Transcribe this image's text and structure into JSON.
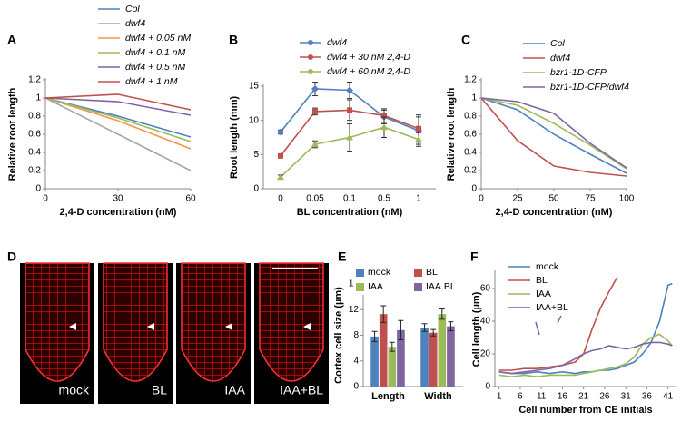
{
  "chart_data": [
    {
      "type": "line",
      "panel_label": "A",
      "ylabel": "Relative root length",
      "xlabel": "2,4-D concentration (nM)",
      "x": [
        0,
        30,
        60
      ],
      "xlim": [
        0,
        60
      ],
      "xticks": [
        0,
        30,
        60
      ],
      "ylim": [
        0,
        1.2
      ],
      "yticks": [
        0,
        0.2,
        0.4,
        0.6,
        0.8,
        1,
        1.2
      ],
      "series": [
        {
          "name": "Col",
          "color": "#4f81bd",
          "values": [
            1,
            0.8,
            0.57
          ]
        },
        {
          "name": "dwf4",
          "color": "#a6a6a6",
          "values": [
            1,
            0.6,
            0.2
          ]
        },
        {
          "name": "dwf4 + 0.05 nM",
          "color": "#f79646",
          "values": [
            1,
            0.75,
            0.44
          ]
        },
        {
          "name": "dwf4 + 0.1 nM",
          "color": "#9bbb59",
          "values": [
            1,
            0.78,
            0.52
          ]
        },
        {
          "name": "dwf4 + 0.5 nM",
          "color": "#8064a2",
          "values": [
            1,
            0.96,
            0.81
          ]
        },
        {
          "name": "dwf4 + 1 nM",
          "color": "#c0504d",
          "values": [
            1,
            1.04,
            0.87
          ]
        }
      ]
    },
    {
      "type": "line",
      "panel_label": "B",
      "ylabel": "Root length (mm)",
      "xlabel": "BL concentration (nM)",
      "categories": [
        "0",
        "0.05",
        "0.1",
        "0.5",
        "1"
      ],
      "ylim": [
        0,
        15
      ],
      "yticks": [
        0,
        5,
        10,
        15
      ],
      "series": [
        {
          "name": "dwf4",
          "color": "#4f81bd",
          "marker": "diamond",
          "values": [
            8.3,
            14.6,
            14.4,
            10.5,
            8.5
          ],
          "errors": [
            0.3,
            1,
            1.2,
            1,
            2
          ]
        },
        {
          "name": "dwf4 + 30 nM 2,4-D",
          "color": "#c0504d",
          "marker": "square",
          "values": [
            4.8,
            11.3,
            11.5,
            10.7,
            8.8
          ],
          "errors": [
            0.3,
            0.5,
            1.5,
            1,
            2
          ]
        },
        {
          "name": "dwf4 + 60 nM 2,4-D",
          "color": "#9bbb59",
          "marker": "triangle",
          "values": [
            1.7,
            6.5,
            7.5,
            9,
            7.2
          ],
          "errors": [
            0.3,
            0.5,
            2,
            1.5,
            1
          ]
        }
      ]
    },
    {
      "type": "line",
      "panel_label": "C",
      "ylabel": "Relative root length",
      "xlabel": "2,4-D concentration (nM)",
      "x": [
        0,
        25,
        50,
        75,
        100
      ],
      "xlim": [
        0,
        100
      ],
      "xticks": [
        0,
        25,
        50,
        75,
        100
      ],
      "ylim": [
        0,
        1.2
      ],
      "yticks": [
        0,
        0.2,
        0.4,
        0.6,
        0.8,
        1,
        1.2
      ],
      "series": [
        {
          "name": "Col",
          "color": "#4f81bd",
          "values": [
            1,
            0.87,
            0.6,
            0.38,
            0.17
          ]
        },
        {
          "name": "dwf4",
          "color": "#c0504d",
          "values": [
            1,
            0.53,
            0.25,
            0.18,
            0.14
          ]
        },
        {
          "name": "bzr1-1D-CFP",
          "color": "#9bbb59",
          "values": [
            1,
            0.92,
            0.72,
            0.48,
            0.22
          ]
        },
        {
          "name": "bzr1-1D-CFP/dwf4",
          "color": "#8064a2",
          "values": [
            1,
            0.96,
            0.83,
            0.5,
            0.23
          ]
        }
      ]
    },
    {
      "type": "bar",
      "panel_label": "E",
      "ylabel": "Cortex cell size (µm)",
      "categories": [
        "Length",
        "Width"
      ],
      "ylim": [
        0,
        16
      ],
      "yticks": [
        0,
        4,
        8,
        12,
        16
      ],
      "series": [
        {
          "name": "mock",
          "color": "#4f81bd",
          "values": [
            7.8,
            9.2
          ],
          "errors": [
            0.8,
            0.6
          ]
        },
        {
          "name": "BL",
          "color": "#c0504d",
          "values": [
            11.3,
            8.4
          ],
          "errors": [
            1.3,
            0.5
          ]
        },
        {
          "name": "IAA",
          "color": "#9bbb59",
          "values": [
            6.2,
            11.3
          ],
          "errors": [
            0.7,
            0.8
          ]
        },
        {
          "name": "IAA.BL",
          "color": "#8064a2",
          "values": [
            8.8,
            9.4
          ],
          "errors": [
            1.5,
            0.7
          ]
        }
      ]
    },
    {
      "type": "line",
      "panel_label": "F",
      "ylabel": "Cell length (µm)",
      "xlabel": "Cell number from CE initials",
      "x": [
        1,
        4,
        7,
        10,
        13,
        16,
        19,
        21,
        23,
        25,
        27,
        29,
        31,
        33,
        35,
        37,
        39,
        41,
        42
      ],
      "xlim": [
        0,
        43
      ],
      "xticks": [
        1,
        6,
        11,
        16,
        21,
        26,
        31,
        36,
        41
      ],
      "ylim": [
        0,
        70
      ],
      "yticks": [
        0,
        20,
        40,
        60
      ],
      "series": [
        {
          "name": "mock",
          "color": "#4f81bd",
          "values": [
            9,
            8,
            8,
            9,
            8,
            9,
            8,
            9,
            9,
            10,
            10,
            11,
            13,
            15,
            20,
            27,
            40,
            62,
            63
          ]
        },
        {
          "name": "BL",
          "color": "#c0504d",
          "values": [
            10,
            10,
            11,
            11,
            12,
            13,
            15,
            20,
            35,
            48,
            58,
            67,
            null,
            null,
            null,
            null,
            null,
            null,
            null
          ]
        },
        {
          "name": "IAA",
          "color": "#9bbb59",
          "values": [
            7,
            6,
            7,
            6,
            7,
            7,
            7,
            8,
            9,
            10,
            11,
            12,
            14,
            18,
            26,
            30,
            32,
            28,
            25
          ]
        },
        {
          "name": "IAA+BL",
          "color": "#8064a2",
          "values": [
            9,
            8,
            9,
            10,
            11,
            13,
            17,
            20,
            22,
            23,
            25,
            24,
            23,
            24,
            26,
            27,
            27,
            26,
            25
          ]
        }
      ]
    }
  ],
  "micrographs": {
    "panel_label": "D",
    "labels": [
      "mock",
      "BL",
      "IAA",
      "IAA+BL"
    ]
  }
}
